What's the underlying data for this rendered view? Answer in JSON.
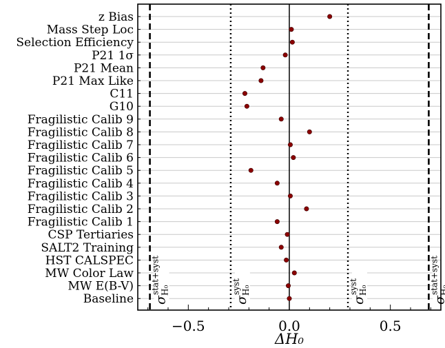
{
  "chart_data": {
    "type": "scatter",
    "xlabel": "ΔH₀",
    "xlim": [
      -0.75,
      0.75
    ],
    "xticks": [
      -0.5,
      0.0,
      0.5
    ],
    "xtick_labels": [
      "−0.5",
      "0.0",
      "0.5"
    ],
    "categories": [
      "z Bias",
      "Mass Step Loc",
      "Selection Efficiency",
      "P21 1σ",
      "P21 Mean",
      "P21 Max Like",
      "C11",
      "G10",
      "Fragilistic Calib 9",
      "Fragilistic Calib 8",
      "Fragilistic Calib 7",
      "Fragilistic Calib 6",
      "Fragilistic Calib 5",
      "Fragilistic Calib 4",
      "Fragilistic Calib 3",
      "Fragilistic Calib 2",
      "Fragilistic Calib 1",
      "CSP Tertiaries",
      "SALT2 Training",
      "HST CALSPEC",
      "MW Color Law",
      "MW E(B-V)",
      "Baseline"
    ],
    "values": [
      0.2,
      0.01,
      0.015,
      -0.02,
      -0.13,
      -0.14,
      -0.22,
      -0.21,
      -0.04,
      0.1,
      0.005,
      0.02,
      -0.19,
      -0.06,
      0.005,
      0.085,
      -0.06,
      -0.01,
      -0.04,
      -0.015,
      0.025,
      -0.005,
      0.0
    ],
    "reference_lines": [
      {
        "x": 0.0,
        "style": "solid"
      },
      {
        "x": -0.29,
        "style": "dotted",
        "label": "σ_H0^syst"
      },
      {
        "x": 0.29,
        "style": "dotted",
        "label": "σ_H0^syst"
      },
      {
        "x": -0.69,
        "style": "dashed",
        "label": "σ_H0^stat+syst"
      },
      {
        "x": 0.69,
        "style": "dashed",
        "label": "σ_H0^stat+syst"
      }
    ],
    "annotations": [
      {
        "sym": "σ",
        "sub": "H₀",
        "sup": "stat+syst"
      },
      {
        "sym": "σ",
        "sub": "H₀",
        "sup": "syst"
      },
      {
        "sym": "σ",
        "sub": "H₀",
        "sup": "syst"
      },
      {
        "sym": "σ",
        "sub": "H₀",
        "sup": "stat+syst"
      }
    ],
    "point_color": "#8b0000",
    "grid": "horizontal"
  }
}
